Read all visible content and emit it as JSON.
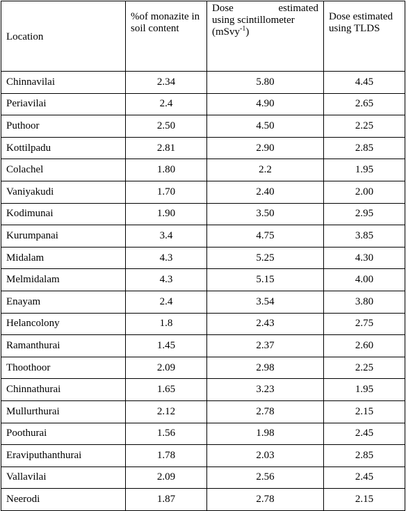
{
  "headers": {
    "location": "Location",
    "monazite": "%of monazite in soil content",
    "scint_line1": "Dose estimated",
    "scint_line2": "using scintillometer",
    "scint_unit_base": "(mSvy",
    "scint_unit_sup": "-1",
    "scint_unit_close": ")",
    "tlds": "Dose estimated using TLDS"
  },
  "rows": [
    {
      "location": "Chinnavilai",
      "monazite": "2.34",
      "scint": "5.80",
      "tlds": "4.45"
    },
    {
      "location": "Periavilai",
      "monazite": "2.4",
      "scint": "4.90",
      "tlds": "2.65"
    },
    {
      "location": "Puthoor",
      "monazite": "2.50",
      "scint": "4.50",
      "tlds": "2.25"
    },
    {
      "location": "Kottilpadu",
      "monazite": "2.81",
      "scint": "2.90",
      "tlds": "2.85"
    },
    {
      "location": "Colachel",
      "monazite": "1.80",
      "scint": "2.2",
      "tlds": "1.95"
    },
    {
      "location": "Vaniyakudi",
      "monazite": "1.70",
      "scint": "2.40",
      "tlds": "2.00"
    },
    {
      "location": "Kodimunai",
      "monazite": "1.90",
      "scint": "3.50",
      "tlds": "2.95"
    },
    {
      "location": "Kurumpanai",
      "monazite": "3.4",
      "scint": "4.75",
      "tlds": "3.85"
    },
    {
      "location": "Midalam",
      "monazite": "4.3",
      "scint": "5.25",
      "tlds": "4.30"
    },
    {
      "location": "Melmidalam",
      "monazite": "4.3",
      "scint": "5.15",
      "tlds": "4.00"
    },
    {
      "location": "Enayam",
      "monazite": "2.4",
      "scint": "3.54",
      "tlds": "3.80"
    },
    {
      "location": "Helancolony",
      "monazite": "1.8",
      "scint": "2.43",
      "tlds": "2.75"
    },
    {
      "location": "Ramanthurai",
      "monazite": "1.45",
      "scint": "2.37",
      "tlds": "2.60"
    },
    {
      "location": "Thoothoor",
      "monazite": "2.09",
      "scint": "2.98",
      "tlds": "2.25"
    },
    {
      "location": "Chinnathurai",
      "monazite": "1.65",
      "scint": "3.23",
      "tlds": "1.95"
    },
    {
      "location": "Mullurthurai",
      "monazite": "2.12",
      "scint": "2.78",
      "tlds": "2.15"
    },
    {
      "location": "Poothurai",
      "monazite": "1.56",
      "scint": "1.98",
      "tlds": "2.45"
    },
    {
      "location": "Eraviputhanthurai",
      "monazite": "1.78",
      "scint": "2.03",
      "tlds": "2.85"
    },
    {
      "location": "Vallavilai",
      "monazite": "2.09",
      "scint": "2.56",
      "tlds": "2.45"
    },
    {
      "location": "Neerodi",
      "monazite": "1.87",
      "scint": "2.78",
      "tlds": "2.15"
    }
  ]
}
